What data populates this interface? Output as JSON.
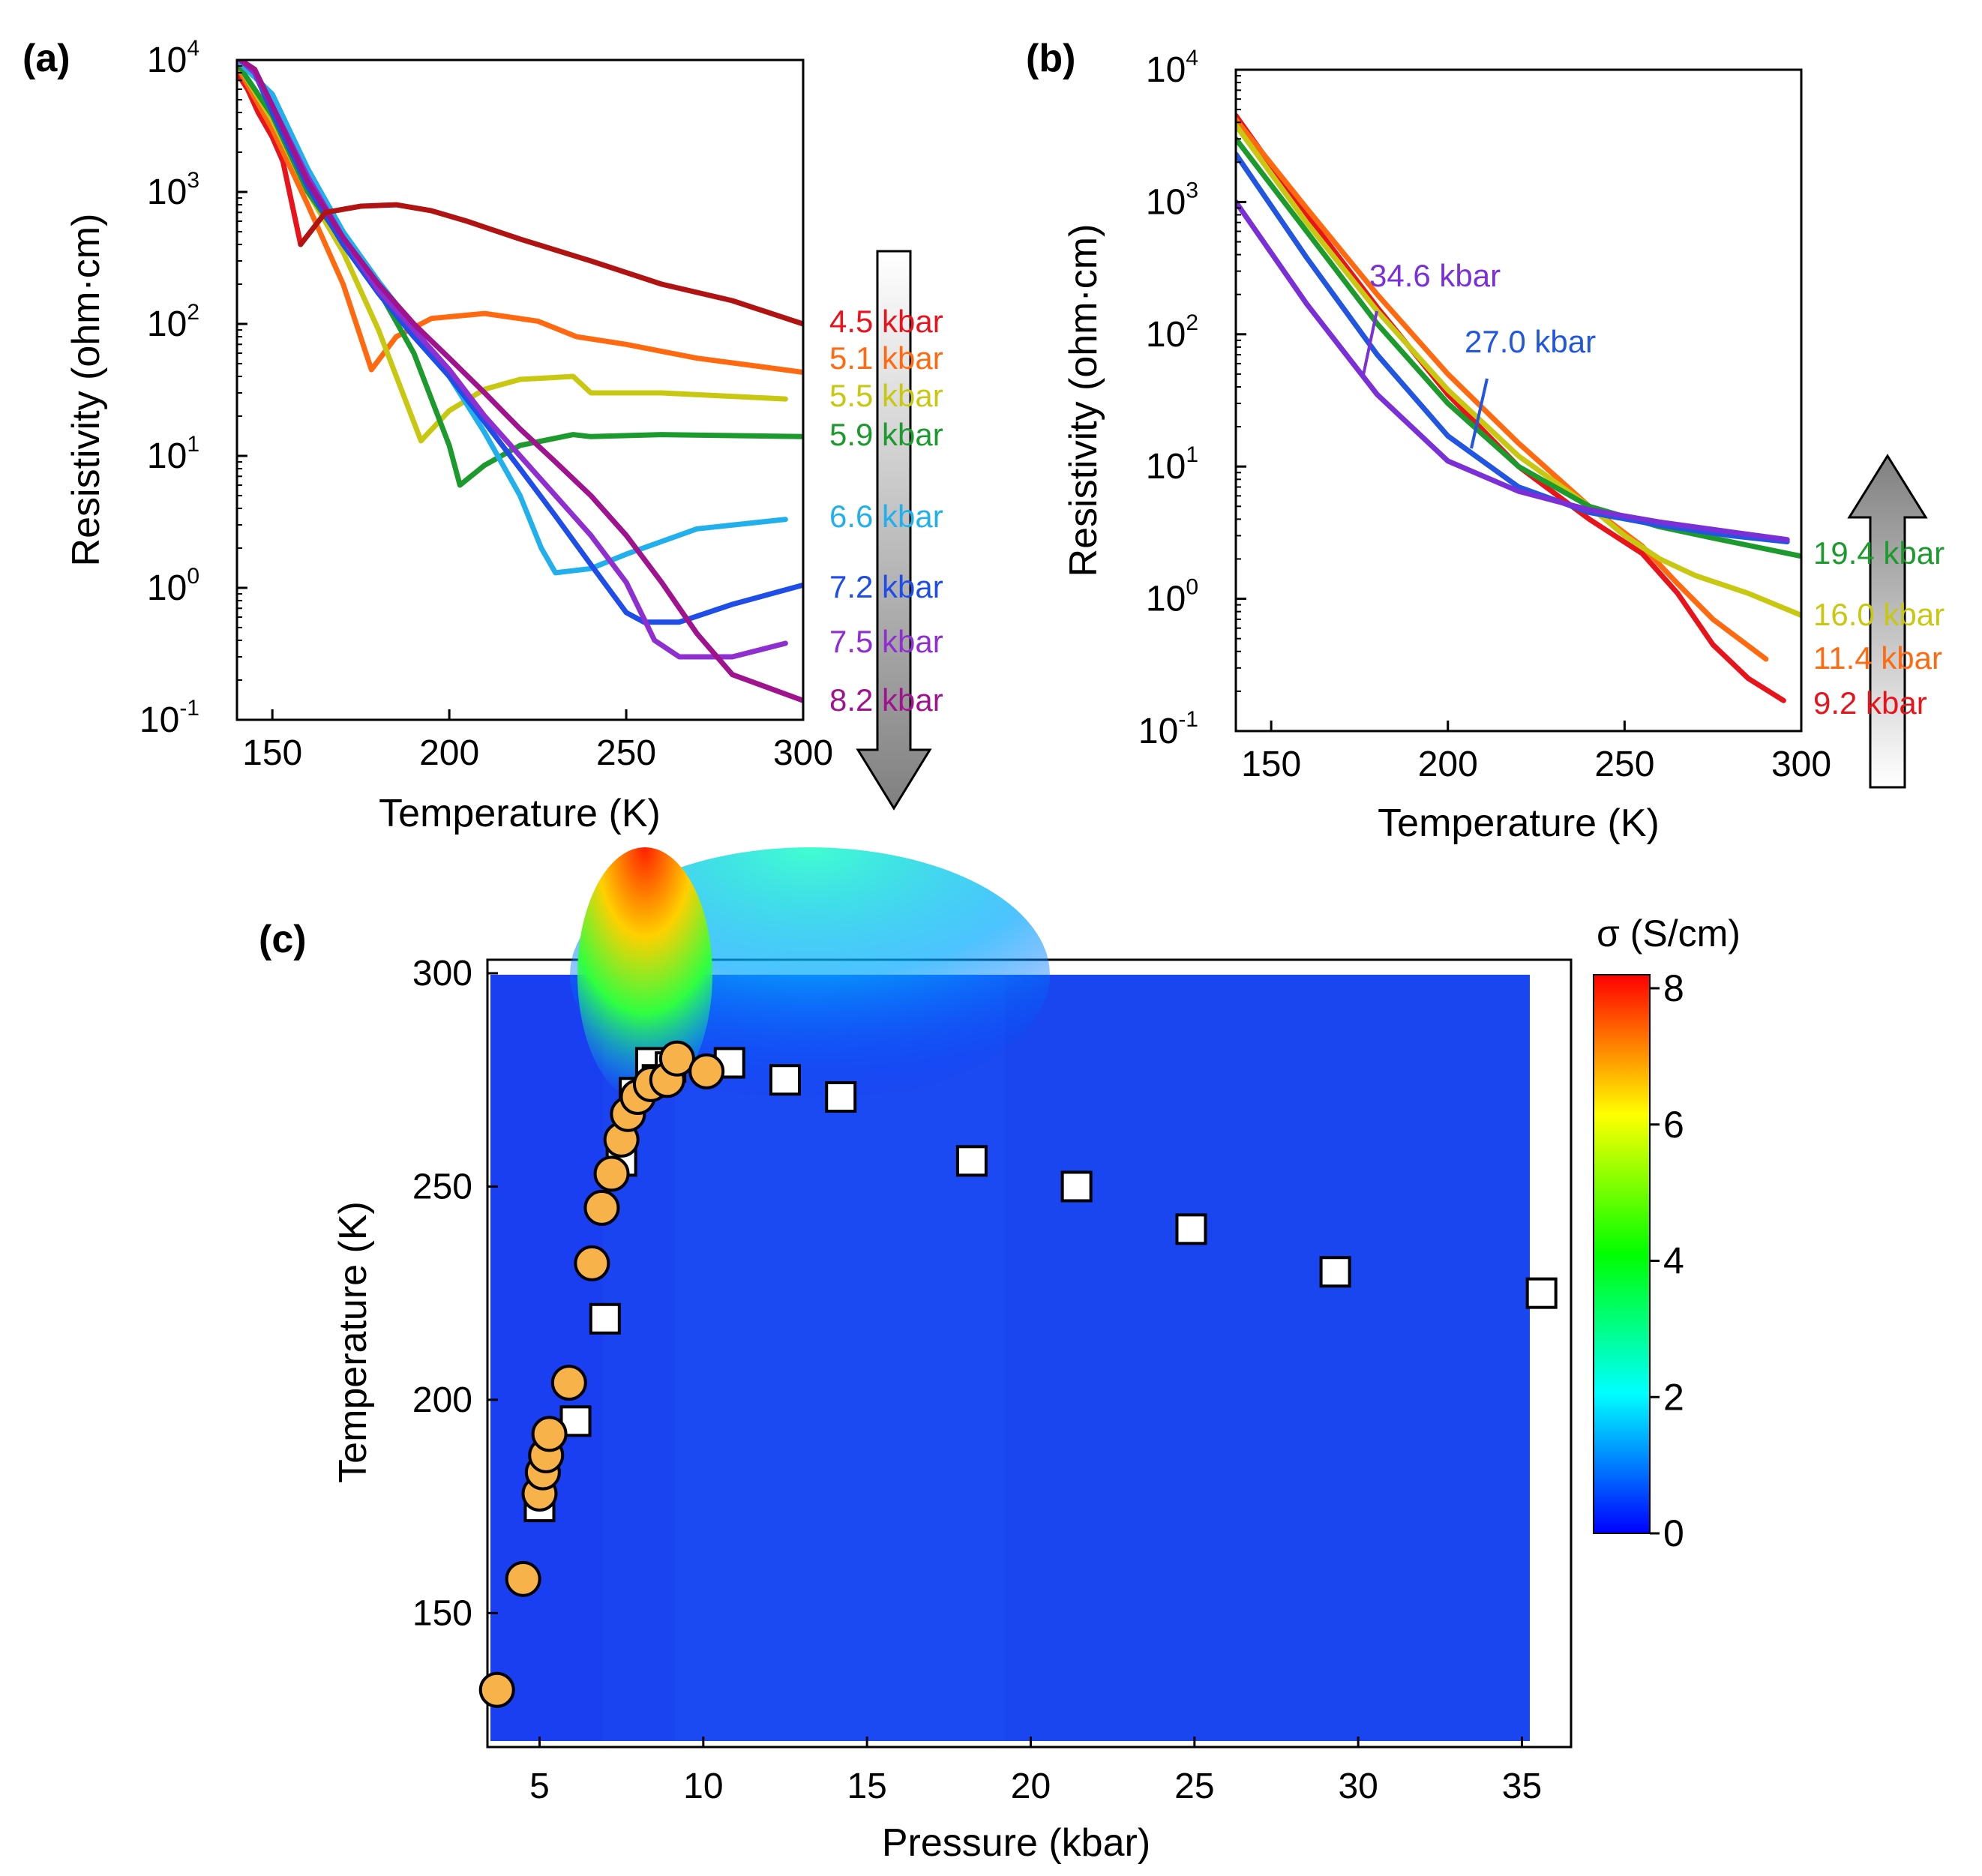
{
  "chart_data": [
    {
      "id": "a",
      "panel_label": "(a)",
      "type": "line",
      "xlabel": "Temperature (K)",
      "ylabel": "Resistivity (ohm·cm)",
      "xlim": [
        140,
        300
      ],
      "ylim_log10": [
        -1,
        4
      ],
      "xticks": [
        "150",
        "200",
        "250",
        "300"
      ],
      "yticks": [
        {
          "base": "10",
          "exp": "-1"
        },
        {
          "base": "10",
          "exp": "0"
        },
        {
          "base": "10",
          "exp": "1"
        },
        {
          "base": "10",
          "exp": "2"
        },
        {
          "base": "10",
          "exp": "3"
        },
        {
          "base": "10",
          "exp": "4"
        }
      ],
      "arrow_direction": "down",
      "series": [
        {
          "name": "4.5 kbar",
          "color": "#e8141c",
          "x": [
            140,
            143,
            146,
            150,
            153,
            158
          ],
          "y": [
            8000,
            6000,
            4000,
            2600,
            1700,
            400
          ]
        },
        {
          "name": "5.1 kbar",
          "color": "#ff6a10",
          "x": [
            140,
            150,
            160,
            170,
            178,
            185,
            195,
            210,
            225,
            236,
            250,
            270,
            300
          ],
          "y": [
            9000,
            3000,
            800,
            200,
            45,
            80,
            110,
            120,
            105,
            80,
            70,
            55,
            43
          ]
        },
        {
          "name": "5.5 kbar",
          "color": "#c8c812",
          "x": [
            140,
            150,
            160,
            170,
            180,
            192,
            200,
            210,
            220,
            235,
            240,
            260,
            295
          ],
          "y": [
            9500,
            3500,
            1000,
            350,
            90,
            13,
            22,
            32,
            38,
            40,
            30,
            30,
            27
          ]
        },
        {
          "name": "5.9 kbar",
          "color": "#1d9a2e",
          "x": [
            140,
            150,
            160,
            170,
            180,
            190,
            200,
            203,
            210,
            220,
            235,
            240,
            260,
            300
          ],
          "y": [
            9500,
            3800,
            1000,
            420,
            180,
            60,
            12,
            6,
            8.5,
            12,
            14.5,
            14,
            14.5,
            14
          ]
        },
        {
          "name": "6.6 kbar",
          "color": "#22b0ec",
          "x": [
            140,
            150,
            160,
            170,
            180,
            190,
            200,
            210,
            220,
            226,
            230,
            240,
            250,
            270,
            295
          ],
          "y": [
            10000,
            5500,
            1500,
            500,
            210,
            95,
            40,
            15,
            5,
            2,
            1.3,
            1.4,
            1.8,
            2.8,
            3.3
          ]
        },
        {
          "name": "7.2 kbar",
          "color": "#1f4de8",
          "x": [
            141,
            145,
            150,
            160,
            170,
            180,
            190,
            200,
            210,
            220,
            230,
            240,
            250,
            255,
            265,
            280,
            300
          ],
          "y": [
            10000,
            8000,
            4000,
            1100,
            400,
            170,
            80,
            40,
            18,
            8,
            3.5,
            1.5,
            0.65,
            0.55,
            0.55,
            0.75,
            1.05
          ]
        },
        {
          "name": "7.5 kbar",
          "color": "#8f2fd0",
          "x": [
            141,
            145,
            150,
            160,
            170,
            180,
            190,
            200,
            210,
            220,
            230,
            240,
            250,
            258,
            265,
            280,
            295
          ],
          "y": [
            10000,
            8000,
            4500,
            1300,
            450,
            180,
            90,
            45,
            20,
            10,
            5,
            2.5,
            1.1,
            0.4,
            0.3,
            0.3,
            0.38
          ]
        },
        {
          "name": "8.2 kbar",
          "color": "#a0138e",
          "x": [
            141,
            145,
            150,
            160,
            170,
            180,
            190,
            200,
            210,
            220,
            230,
            240,
            250,
            260,
            270,
            280,
            300
          ],
          "y": [
            10000,
            8500,
            4500,
            1200,
            450,
            200,
            100,
            55,
            30,
            16,
            9,
            5,
            2.5,
            1.1,
            0.45,
            0.22,
            0.14
          ]
        },
        {
          "name": "",
          "color": "#b01412",
          "x": [
            158,
            165,
            175,
            185,
            195,
            205,
            220,
            240,
            260,
            280,
            300
          ],
          "y": [
            400,
            700,
            780,
            800,
            720,
            600,
            440,
            300,
            200,
            150,
            100
          ]
        }
      ]
    },
    {
      "id": "b",
      "panel_label": "(b)",
      "type": "line",
      "xlabel": "Temperature (K)",
      "ylabel": "Resistivity (ohm·cm)",
      "xlim": [
        140,
        300
      ],
      "ylim_log10": [
        -1,
        4
      ],
      "xticks": [
        "150",
        "200",
        "250",
        "300"
      ],
      "yticks": [
        {
          "base": "10",
          "exp": "-1"
        },
        {
          "base": "10",
          "exp": "0"
        },
        {
          "base": "10",
          "exp": "1"
        },
        {
          "base": "10",
          "exp": "2"
        },
        {
          "base": "10",
          "exp": "3"
        },
        {
          "base": "10",
          "exp": "4"
        }
      ],
      "arrow_direction": "up",
      "annotations": [
        {
          "text": "34.6 kbar",
          "color": "#7a30d6",
          "x": 180,
          "y": 200
        },
        {
          "text": "27.0 kbar",
          "color": "#2255e0",
          "x": 207,
          "y": 60
        }
      ],
      "series": [
        {
          "name": "9.2 kbar",
          "color": "#e8141c",
          "x": [
            140,
            160,
            180,
            200,
            220,
            240,
            255,
            265,
            275,
            285,
            295
          ],
          "y": [
            4500,
            800,
            160,
            35,
            10,
            4,
            2.2,
            1.1,
            0.45,
            0.25,
            0.17
          ]
        },
        {
          "name": "11.4 kbar",
          "color": "#ff6a10",
          "x": [
            140,
            160,
            180,
            200,
            220,
            240,
            255,
            265,
            275,
            290
          ],
          "y": [
            4200,
            900,
            200,
            50,
            15,
            5,
            2.5,
            1.3,
            0.7,
            0.35
          ]
        },
        {
          "name": "16.0 kbar",
          "color": "#c8c812",
          "x": [
            140,
            160,
            180,
            200,
            220,
            240,
            250,
            260,
            270,
            285,
            300
          ],
          "y": [
            3800,
            700,
            150,
            38,
            12,
            5,
            3,
            2,
            1.5,
            1.1,
            0.75
          ]
        },
        {
          "name": "19.4 kbar",
          "color": "#1d9a2e",
          "x": [
            140,
            160,
            180,
            200,
            220,
            240,
            260,
            280,
            300
          ],
          "y": [
            3000,
            600,
            120,
            30,
            10,
            5,
            3.5,
            2.7,
            2.1
          ]
        },
        {
          "name": "27.0 kbar",
          "color": "#2255e0",
          "x": [
            140,
            160,
            180,
            200,
            220,
            240,
            260,
            280,
            296
          ],
          "y": [
            2300,
            380,
            70,
            17,
            7,
            4.5,
            3.6,
            3,
            2.7
          ]
        },
        {
          "name": "34.6 kbar",
          "color": "#7a30d6",
          "x": [
            140,
            160,
            180,
            200,
            220,
            240,
            260,
            280,
            296
          ],
          "y": [
            1000,
            170,
            35,
            11,
            6.5,
            4.7,
            3.8,
            3.2,
            2.8
          ]
        }
      ]
    },
    {
      "id": "c",
      "panel_label": "(c)",
      "type": "heatmap",
      "xlabel": "Pressure (kbar)",
      "ylabel": "Temperature (K)",
      "xlim": [
        3.5,
        36.5
      ],
      "ylim": [
        120,
        300
      ],
      "xticks": [
        "5",
        "10",
        "15",
        "20",
        "25",
        "30",
        "35"
      ],
      "yticks": [
        "150",
        "200",
        "250",
        "300"
      ],
      "colorbar": {
        "title": "σ (S/cm)",
        "min": 0,
        "max": 8,
        "ticks": [
          "0",
          "2",
          "4",
          "6",
          "8"
        ]
      },
      "circles": [
        [
          3.7,
          132
        ],
        [
          4.5,
          158
        ],
        [
          5.0,
          178
        ],
        [
          5.1,
          183
        ],
        [
          5.2,
          187
        ],
        [
          5.3,
          192
        ],
        [
          5.9,
          204
        ],
        [
          6.6,
          232
        ],
        [
          6.9,
          245
        ],
        [
          7.2,
          253
        ],
        [
          7.5,
          261
        ],
        [
          7.7,
          267
        ],
        [
          8.0,
          271
        ],
        [
          8.4,
          274
        ],
        [
          8.9,
          275
        ],
        [
          9.2,
          280
        ],
        [
          10.1,
          277
        ]
      ],
      "squares": [
        [
          5.0,
          175
        ],
        [
          6.1,
          195
        ],
        [
          7.0,
          219
        ],
        [
          7.5,
          256
        ],
        [
          7.9,
          272
        ],
        [
          8.4,
          279
        ],
        [
          8.6,
          275
        ],
        [
          9.0,
          278
        ],
        [
          10.8,
          279
        ],
        [
          12.5,
          275
        ],
        [
          14.2,
          271
        ],
        [
          18.2,
          256
        ],
        [
          21.4,
          250
        ],
        [
          24.9,
          240
        ],
        [
          29.3,
          230
        ],
        [
          35.6,
          225
        ]
      ]
    }
  ]
}
